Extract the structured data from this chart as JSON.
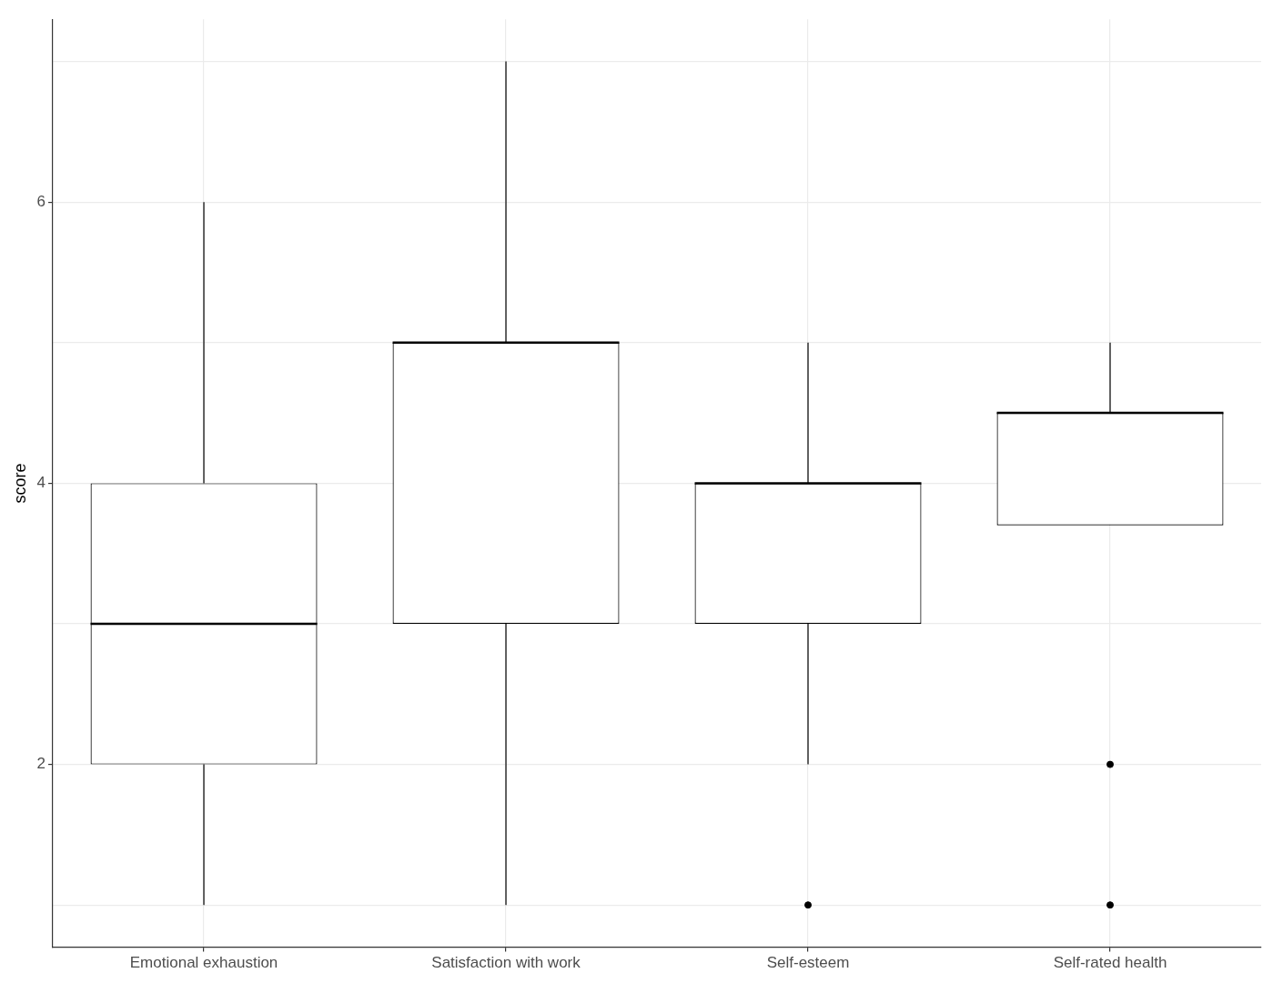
{
  "chart_data": {
    "type": "box",
    "ylabel": "score",
    "categories": [
      "Emotional exhaustion",
      "Satisfaction with work",
      "Self-esteem",
      "Self-rated health"
    ],
    "boxes": [
      {
        "low": 1,
        "q1": 2,
        "median": 3,
        "q3": 4,
        "high": 6
      },
      {
        "low": 1,
        "q1": 3,
        "median": 5,
        "q3": 5,
        "high": 7
      },
      {
        "low": 2,
        "q1": 3,
        "median": 4,
        "q3": 4,
        "high": 5,
        "outliers": [
          1
        ]
      },
      {
        "low": 3.7,
        "q1": 3.7,
        "median": 4.5,
        "q3": 4.5,
        "high": 5,
        "outliers": [
          2,
          1
        ]
      }
    ],
    "ylim": [
      0.7,
      7.3
    ],
    "yticks": [
      {
        "value": 1,
        "label": null
      },
      2,
      {
        "value": 3,
        "label": null
      },
      4,
      {
        "value": 5,
        "label": null
      },
      6,
      {
        "value": 7,
        "label": null
      }
    ],
    "grid": true,
    "color": "#000000"
  }
}
